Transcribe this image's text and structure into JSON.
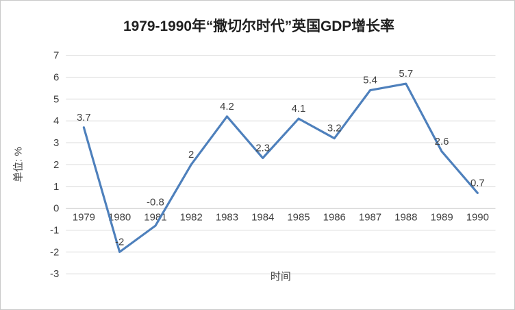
{
  "chart_data": {
    "type": "line",
    "title": "1979-1990年“撒切尔时代”英国GDP增长率",
    "xlabel": "时间",
    "ylabel": "单位: %",
    "categories": [
      "1979",
      "1980",
      "1981",
      "1982",
      "1983",
      "1984",
      "1985",
      "1986",
      "1987",
      "1988",
      "1989",
      "1990"
    ],
    "values": [
      3.7,
      -2,
      -0.8,
      2,
      4.2,
      2.3,
      4.1,
      3.2,
      5.4,
      5.7,
      2.6,
      0.7
    ],
    "value_labels": [
      "3.7",
      "-2",
      "-0.8",
      "2",
      "4.2",
      "2.3",
      "4.1",
      "3.2",
      "5.4",
      "5.7",
      "2.6",
      "0.7"
    ],
    "ylim": [
      -3,
      7
    ],
    "ytick_step": 1,
    "yticks": [
      "7",
      "6",
      "5",
      "4",
      "3",
      "2",
      "1",
      "0",
      "-1",
      "-2",
      "-3"
    ],
    "grid": true,
    "legend": "none",
    "line_color": "#4e80bc",
    "background_color": "#ffffff",
    "border_color": "#c9c9c9"
  }
}
